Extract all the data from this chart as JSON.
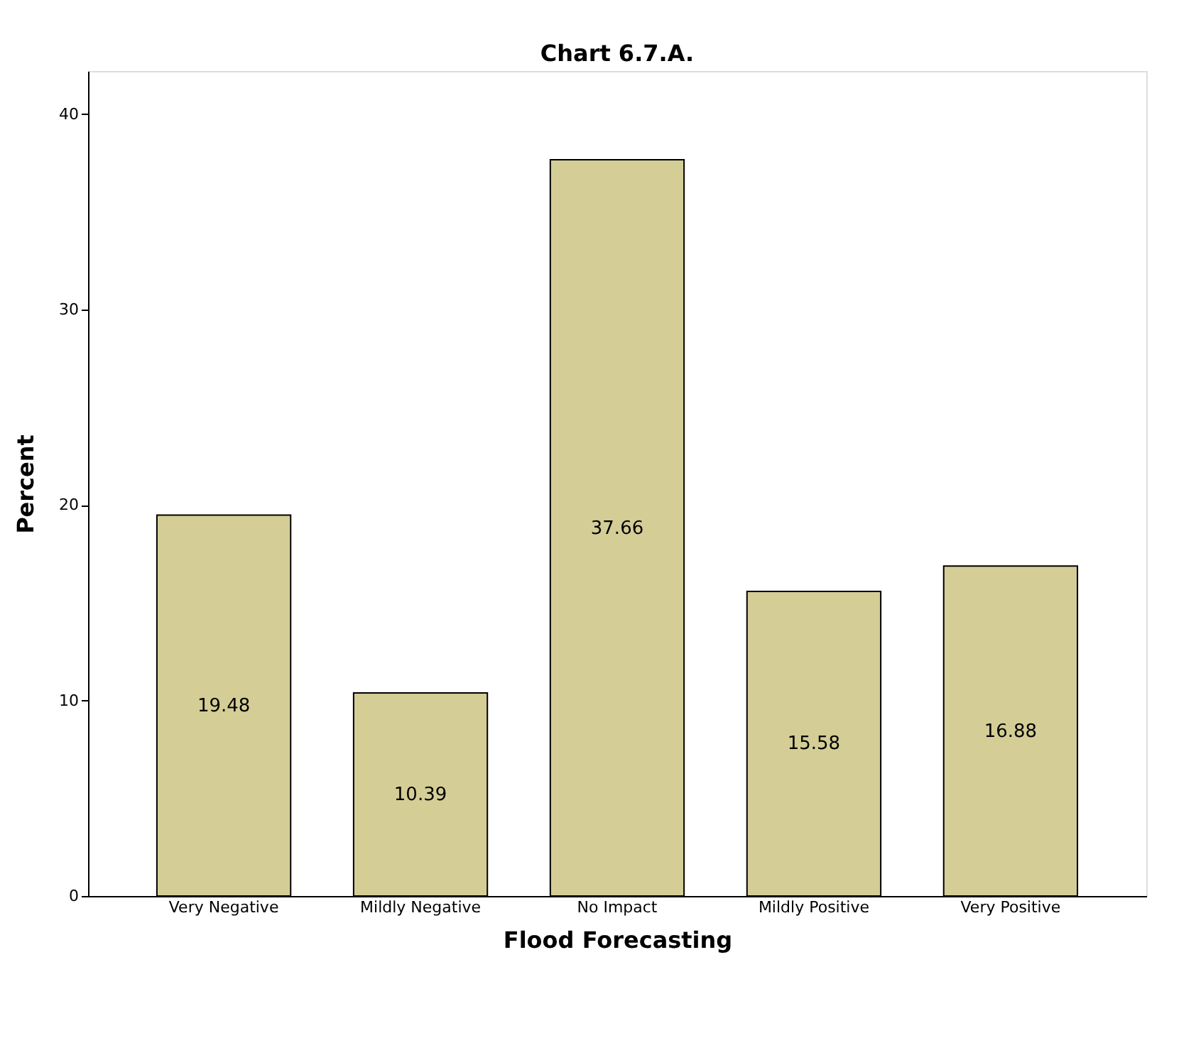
{
  "chart_data": {
    "type": "bar",
    "title": "Chart 6.7.A.",
    "xlabel": "Flood Forecasting",
    "ylabel": "Percent",
    "categories": [
      "Very Negative",
      "Mildly Negative",
      "No Impact",
      "Mildly Positive",
      "Very Positive"
    ],
    "values": [
      19.48,
      10.39,
      37.66,
      15.58,
      16.88
    ],
    "color": "#d4cd96",
    "ylim": [
      0,
      42.2
    ],
    "yticks": [
      0,
      10,
      20,
      30,
      40
    ],
    "grid": false,
    "data_labels": true
  }
}
